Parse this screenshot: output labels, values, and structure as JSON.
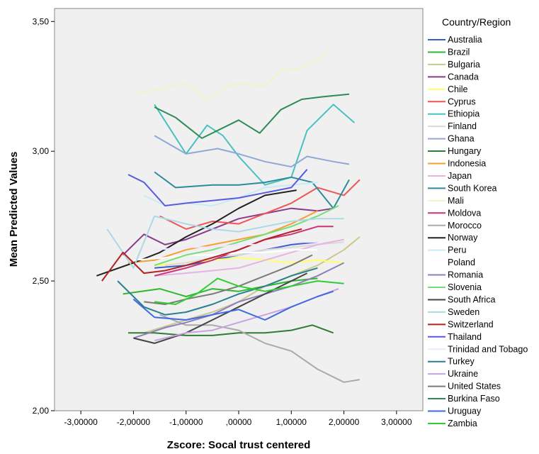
{
  "chart_data": {
    "type": "line",
    "title": "",
    "xlabel": "Zscore:  Socal trust centered",
    "ylabel": "Mean Predicted Values",
    "xlim": [
      -3.5,
      3.5
    ],
    "ylim": [
      2.0,
      3.55
    ],
    "x_ticks": [
      -3,
      -2,
      -1,
      0,
      1,
      2,
      3
    ],
    "x_tick_labels": [
      "-3,00000",
      "-2,00000",
      "-1,00000",
      ",00000",
      "1,00000",
      "2,00000",
      "3,00000"
    ],
    "y_ticks": [
      2.0,
      2.5,
      3.0,
      3.5
    ],
    "y_tick_labels": [
      "2,00",
      "2,50",
      "3,00",
      "3,50"
    ],
    "grid": false,
    "plot_background": "#f0f0f0",
    "legend_title": "Country/Region",
    "legend_position": "right",
    "series": [
      {
        "name": "Australia",
        "color": "#3a5fcd",
        "x": [
          -1.6,
          -1.0,
          -0.5,
          0.0,
          0.5,
          1.0,
          1.5
        ],
        "y": [
          2.55,
          2.56,
          2.58,
          2.6,
          2.62,
          2.64,
          2.65
        ]
      },
      {
        "name": "Brazil",
        "color": "#2eb82e",
        "x": [
          -2.2,
          -1.5,
          -1.0,
          -0.5,
          0.0,
          0.5,
          1.0,
          1.5
        ],
        "y": [
          2.45,
          2.47,
          2.44,
          2.47,
          2.46,
          2.48,
          2.5,
          2.51
        ]
      },
      {
        "name": "Bulgaria",
        "color": "#c9c98a",
        "x": [
          -1.8,
          -1.0,
          -0.5,
          0.0,
          0.5,
          1.0,
          1.5,
          2.0,
          2.3
        ],
        "y": [
          2.3,
          2.35,
          2.38,
          2.42,
          2.48,
          2.52,
          2.56,
          2.62,
          2.67
        ]
      },
      {
        "name": "Canada",
        "color": "#8b3a8b",
        "x": [
          -2.2,
          -1.8,
          -1.4,
          -1.0,
          -0.5,
          0.0,
          0.5,
          1.0,
          1.5,
          1.8
        ],
        "y": [
          2.6,
          2.68,
          2.64,
          2.66,
          2.7,
          2.74,
          2.76,
          2.78,
          2.77,
          2.78
        ]
      },
      {
        "name": "Chile",
        "color": "#ffff66",
        "x": [
          -1.6,
          -1.0,
          -0.5,
          0.0,
          0.5,
          1.0,
          1.5,
          2.0
        ],
        "y": [
          2.56,
          2.57,
          2.58,
          2.59,
          2.58,
          2.57,
          2.58,
          2.57
        ]
      },
      {
        "name": "Cyprus",
        "color": "#ee5555",
        "x": [
          -1.5,
          -1.0,
          -0.5,
          0.0,
          0.5,
          1.0,
          1.5,
          2.0,
          2.3
        ],
        "y": [
          2.75,
          2.7,
          2.73,
          2.72,
          2.76,
          2.8,
          2.86,
          2.83,
          2.89
        ]
      },
      {
        "name": "Ethiopia",
        "color": "#48c1c1",
        "x": [
          -1.6,
          -1.0,
          -0.6,
          -0.3,
          0.0,
          0.5,
          1.0,
          1.3,
          1.8,
          2.2
        ],
        "y": [
          3.18,
          2.99,
          3.1,
          3.06,
          2.98,
          2.87,
          2.9,
          3.08,
          3.18,
          3.11
        ]
      },
      {
        "name": "Finland",
        "color": "#d9d9d9",
        "x": [
          -1.4,
          -1.0,
          -0.5,
          0.0,
          0.5,
          1.0,
          1.5,
          2.0
        ],
        "y": [
          2.56,
          2.57,
          2.59,
          2.6,
          2.62,
          2.63,
          2.64,
          2.65
        ]
      },
      {
        "name": "Ghana",
        "color": "#8fa9d6",
        "x": [
          -1.6,
          -1.0,
          -0.4,
          0.0,
          0.5,
          1.0,
          1.3,
          1.8,
          2.1
        ],
        "y": [
          3.06,
          2.99,
          3.01,
          2.99,
          2.96,
          2.94,
          2.98,
          2.96,
          2.95
        ]
      },
      {
        "name": "Hungary",
        "color": "#2e7d32",
        "x": [
          -2.1,
          -1.6,
          -1.0,
          -0.5,
          0.0,
          0.5,
          1.0,
          1.4,
          1.8
        ],
        "y": [
          2.3,
          2.3,
          2.29,
          2.29,
          2.3,
          2.3,
          2.31,
          2.33,
          2.3
        ]
      },
      {
        "name": "Indonesia",
        "color": "#f5a030",
        "x": [
          -2.1,
          -1.6,
          -1.0,
          -0.5,
          0.0,
          0.5,
          1.0,
          1.5
        ],
        "y": [
          2.57,
          2.58,
          2.62,
          2.64,
          2.66,
          2.68,
          2.72,
          2.77
        ]
      },
      {
        "name": "Japan",
        "color": "#e6b3e6",
        "x": [
          -1.6,
          -1.0,
          -0.5,
          0.0,
          0.5,
          1.0,
          1.5,
          2.0
        ],
        "y": [
          2.52,
          2.53,
          2.54,
          2.55,
          2.58,
          2.61,
          2.64,
          2.66
        ]
      },
      {
        "name": "South Korea",
        "color": "#2e8b9a",
        "x": [
          -1.6,
          -1.2,
          -0.5,
          0.0,
          0.5,
          1.0,
          1.4,
          1.8,
          2.1
        ],
        "y": [
          2.92,
          2.86,
          2.87,
          2.87,
          2.88,
          2.9,
          2.88,
          2.78,
          2.89
        ]
      },
      {
        "name": "Mali",
        "color": "#e8f8c8",
        "x": [
          -2.0,
          -1.0,
          -0.6,
          -0.2,
          0.0,
          0.5,
          0.8,
          1.2,
          1.7
        ],
        "y": [
          3.22,
          3.26,
          3.2,
          3.25,
          3.26,
          3.25,
          3.31,
          3.32,
          3.38
        ]
      },
      {
        "name": "Moldova",
        "color": "#cc3377",
        "x": [
          -1.6,
          -1.0,
          -0.5,
          0.0,
          0.5,
          1.0,
          1.5,
          1.8
        ],
        "y": [
          2.52,
          2.55,
          2.58,
          2.62,
          2.66,
          2.68,
          2.71,
          2.71
        ]
      },
      {
        "name": "Morocco",
        "color": "#aaaaaa",
        "x": [
          -1.5,
          -1.0,
          -0.5,
          0.0,
          0.5,
          1.0,
          1.5,
          2.0,
          2.3
        ],
        "y": [
          2.37,
          2.33,
          2.33,
          2.31,
          2.26,
          2.23,
          2.16,
          2.11,
          2.12
        ]
      },
      {
        "name": "Norway",
        "color": "#222222",
        "x": [
          -2.7,
          -2.0,
          -1.5,
          -1.0,
          -0.5,
          0.0,
          0.5,
          1.1
        ],
        "y": [
          2.52,
          2.57,
          2.61,
          2.67,
          2.72,
          2.78,
          2.83,
          2.85
        ]
      },
      {
        "name": "Peru",
        "color": "#c6ecf5",
        "x": [
          -1.8,
          -1.4,
          -1.0,
          -0.5,
          0.0,
          0.5,
          1.0,
          1.5
        ],
        "y": [
          2.83,
          2.79,
          2.8,
          2.79,
          2.82,
          2.86,
          2.87,
          2.88
        ]
      },
      {
        "name": "Poland",
        "color": "#ffffff",
        "x": [
          -2.0,
          -1.4,
          -1.0,
          -0.5,
          0.0,
          0.5,
          1.0,
          1.5
        ],
        "y": [
          2.58,
          2.59,
          2.6,
          2.6,
          2.61,
          2.61,
          2.62,
          2.62
        ]
      },
      {
        "name": "Romania",
        "color": "#8e7fbf",
        "x": [
          -2.0,
          -1.4,
          -1.0,
          -0.5,
          0.0,
          0.5,
          1.0,
          1.5,
          2.0
        ],
        "y": [
          2.28,
          2.32,
          2.34,
          2.37,
          2.42,
          2.45,
          2.48,
          2.52,
          2.57
        ]
      },
      {
        "name": "Slovenia",
        "color": "#77dd77",
        "x": [
          -1.6,
          -1.0,
          -0.5,
          0.0,
          0.5,
          1.0,
          1.5,
          1.9
        ],
        "y": [
          2.56,
          2.6,
          2.62,
          2.65,
          2.68,
          2.71,
          2.75,
          2.79
        ]
      },
      {
        "name": "South Africa",
        "color": "#444444",
        "x": [
          -2.0,
          -1.6,
          -1.0,
          -0.5,
          0.0,
          0.5,
          1.0,
          1.3
        ],
        "y": [
          2.28,
          2.26,
          2.3,
          2.35,
          2.4,
          2.45,
          2.5,
          2.53
        ]
      },
      {
        "name": "Sweden",
        "color": "#add8e6",
        "x": [
          -2.5,
          -2.0,
          -1.6,
          -1.0,
          -0.5,
          0.0,
          0.5,
          1.0,
          1.5,
          2.0
        ],
        "y": [
          2.7,
          2.55,
          2.75,
          2.72,
          2.7,
          2.69,
          2.71,
          2.73,
          2.74,
          2.74
        ]
      },
      {
        "name": "Switzerland",
        "color": "#b22222",
        "x": [
          -2.6,
          -2.2,
          -1.8,
          -1.4,
          -1.0,
          -0.5,
          0.0,
          0.5,
          1.0,
          1.2
        ],
        "y": [
          2.5,
          2.61,
          2.53,
          2.54,
          2.56,
          2.59,
          2.62,
          2.66,
          2.69,
          2.7
        ]
      },
      {
        "name": "Thailand",
        "color": "#5a5ae0",
        "x": [
          -2.1,
          -1.8,
          -1.4,
          -1.0,
          -0.5,
          0.0,
          0.5,
          1.0,
          1.3
        ],
        "y": [
          2.91,
          2.88,
          2.79,
          2.8,
          2.81,
          2.82,
          2.84,
          2.86,
          2.93
        ]
      },
      {
        "name": "Trinidad and Tobago",
        "color": "#f0e6ff",
        "x": [
          -1.6,
          -1.0,
          -0.5,
          0.0,
          0.5,
          1.0,
          1.5
        ],
        "y": [
          2.62,
          2.63,
          2.63,
          2.64,
          2.64,
          2.65,
          2.65
        ]
      },
      {
        "name": "Turkey",
        "color": "#2a7f8f",
        "x": [
          -2.3,
          -1.8,
          -1.4,
          -1.0,
          -0.5,
          0.0,
          0.5,
          1.0,
          1.5
        ],
        "y": [
          2.5,
          2.4,
          2.37,
          2.38,
          2.41,
          2.45,
          2.48,
          2.52,
          2.55
        ]
      },
      {
        "name": "Ukraine",
        "color": "#c8a2e0",
        "x": [
          -1.6,
          -1.0,
          -0.5,
          0.0,
          0.5,
          1.0,
          1.5,
          1.9
        ],
        "y": [
          2.27,
          2.3,
          2.31,
          2.34,
          2.37,
          2.4,
          2.44,
          2.47
        ]
      },
      {
        "name": "United States",
        "color": "#7a7a7a",
        "x": [
          -1.8,
          -1.4,
          -1.0,
          -0.5,
          0.0,
          0.5,
          1.0,
          1.4
        ],
        "y": [
          2.42,
          2.41,
          2.43,
          2.45,
          2.48,
          2.52,
          2.56,
          2.6
        ]
      },
      {
        "name": "Burkina Faso",
        "color": "#2e8b57",
        "x": [
          -1.6,
          -1.2,
          -0.7,
          0.0,
          0.4,
          0.8,
          1.2,
          1.6,
          2.1
        ],
        "y": [
          3.17,
          3.13,
          3.05,
          3.12,
          3.07,
          3.16,
          3.2,
          3.21,
          3.22
        ]
      },
      {
        "name": "Uruguay",
        "color": "#4169e1",
        "x": [
          -2.0,
          -1.6,
          -1.0,
          -0.5,
          0.0,
          0.5,
          1.0,
          1.5,
          1.8
        ],
        "y": [
          2.43,
          2.36,
          2.35,
          2.37,
          2.39,
          2.35,
          2.4,
          2.44,
          2.46
        ]
      },
      {
        "name": "Zambia",
        "color": "#32cd32",
        "x": [
          -1.6,
          -1.2,
          -0.8,
          -0.4,
          0.0,
          0.5,
          1.0,
          1.5,
          2.0
        ],
        "y": [
          2.42,
          2.41,
          2.45,
          2.51,
          2.48,
          2.46,
          2.48,
          2.5,
          2.49
        ]
      }
    ]
  }
}
